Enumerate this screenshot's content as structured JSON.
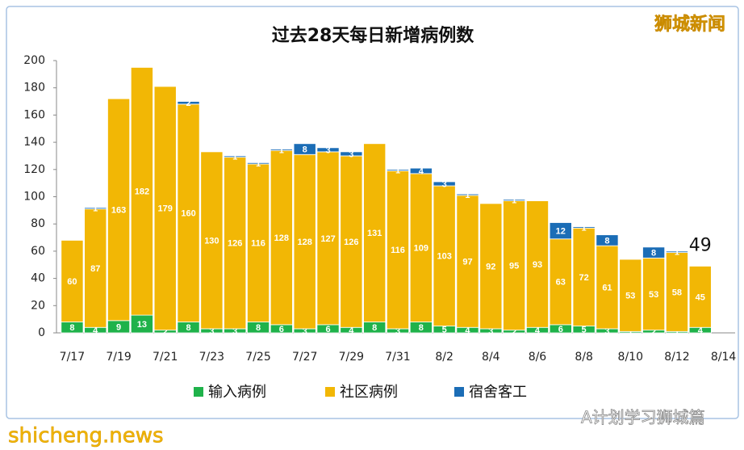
{
  "chart_data": {
    "type": "stacked-bar",
    "title": "过去28天每日新增病例数",
    "categories": [
      "7/17",
      null,
      "7/19",
      null,
      "7/21",
      null,
      "7/23",
      null,
      "7/25",
      null,
      "7/27",
      null,
      "7/29",
      null,
      "7/31",
      null,
      "8/2",
      null,
      "8/4",
      null,
      "8/6",
      null,
      "8/8",
      null,
      "8/10",
      null,
      "8/12",
      null,
      "8/14"
    ],
    "series": [
      {
        "name": "输入病例",
        "color": "#1fb24a",
        "values": [
          8,
          4,
          9,
          13,
          2,
          8,
          3,
          3,
          8,
          6,
          3,
          6,
          4,
          8,
          3,
          8,
          5,
          4,
          3,
          2,
          4,
          6,
          5,
          3,
          1,
          2,
          1,
          4,
          null
        ]
      },
      {
        "name": "社区病例",
        "color": "#f2b705",
        "values": [
          60,
          87,
          163,
          182,
          179,
          160,
          130,
          126,
          116,
          128,
          128,
          127,
          126,
          131,
          116,
          109,
          103,
          97,
          92,
          95,
          93,
          63,
          72,
          61,
          53,
          53,
          58,
          45,
          null
        ]
      },
      {
        "name": "宿舍客工",
        "color": "#1b6db6",
        "values": [
          0,
          1,
          0,
          0,
          0,
          2,
          0,
          1,
          1,
          1,
          8,
          3,
          3,
          0,
          1,
          4,
          3,
          1,
          0,
          1,
          0,
          12,
          1,
          8,
          0,
          8,
          1,
          0,
          null
        ]
      }
    ],
    "ylim": [
      0,
      200
    ],
    "yticks": [
      0,
      20,
      40,
      60,
      80,
      100,
      120,
      140,
      160,
      180,
      200
    ],
    "annotation": "49",
    "watermarks": [
      "狮城新闻",
      "shicheng.news",
      "A计划学习狮城篇"
    ]
  }
}
